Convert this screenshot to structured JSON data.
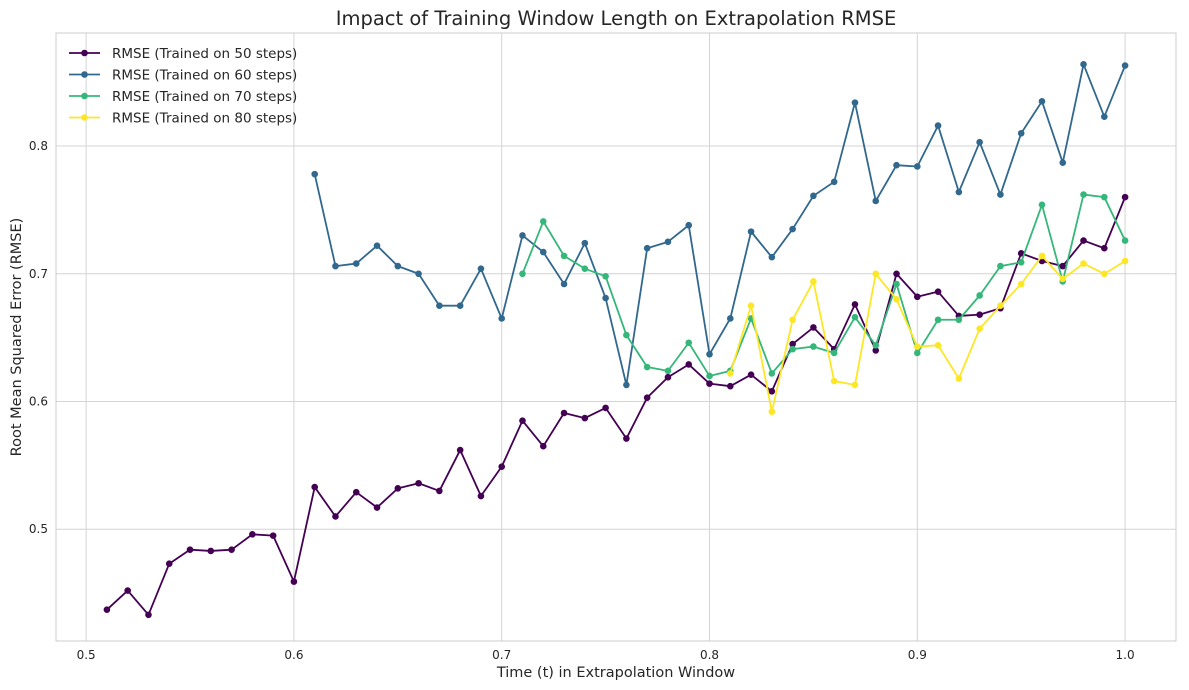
{
  "chart_data": {
    "type": "line",
    "title": "Impact of Training Window Length on Extrapolation RMSE",
    "xlabel": "Time (t) in Extrapolation Window",
    "ylabel": "Root Mean Squared Error (RMSE)",
    "xlim": [
      0.4855,
      1.0245
    ],
    "ylim": [
      0.4125,
      0.8885
    ],
    "xticks": [
      0.5,
      0.6,
      0.7,
      0.8,
      0.9,
      1.0
    ],
    "xtick_labels": [
      "0.5",
      "0.6",
      "0.7",
      "0.8",
      "0.9",
      "1.0"
    ],
    "yticks": [
      0.5,
      0.6,
      0.7,
      0.8
    ],
    "ytick_labels": [
      "0.5",
      "0.6",
      "0.7",
      "0.8"
    ],
    "grid": true,
    "legend_position": "top-left",
    "series": [
      {
        "name": "RMSE (Trained on 50 steps)",
        "color": "#440154",
        "x": [
          0.51,
          0.52,
          0.53,
          0.54,
          0.55,
          0.56,
          0.57,
          0.58,
          0.59,
          0.6,
          0.61,
          0.62,
          0.63,
          0.64,
          0.65,
          0.66,
          0.67,
          0.68,
          0.69,
          0.7,
          0.71,
          0.72,
          0.73,
          0.74,
          0.75,
          0.76,
          0.77,
          0.78,
          0.79,
          0.8,
          0.81,
          0.82,
          0.83,
          0.84,
          0.85,
          0.86,
          0.87,
          0.88,
          0.89,
          0.9,
          0.91,
          0.92,
          0.93,
          0.94,
          0.95,
          0.96,
          0.97,
          0.98,
          0.99,
          1.0
        ],
        "values": [
          0.437,
          0.452,
          0.433,
          0.473,
          0.484,
          0.483,
          0.484,
          0.496,
          0.495,
          0.459,
          0.533,
          0.51,
          0.529,
          0.517,
          0.532,
          0.536,
          0.53,
          0.562,
          0.526,
          0.549,
          0.585,
          0.565,
          0.591,
          0.587,
          0.595,
          0.571,
          0.603,
          0.619,
          0.629,
          0.614,
          0.612,
          0.621,
          0.608,
          0.645,
          0.658,
          0.641,
          0.676,
          0.64,
          0.7,
          0.682,
          0.686,
          0.667,
          0.668,
          0.673,
          0.716,
          0.71,
          0.706,
          0.726,
          0.72,
          0.76
        ]
      },
      {
        "name": "RMSE (Trained on 60 steps)",
        "color": "#31688e",
        "x": [
          0.61,
          0.62,
          0.63,
          0.64,
          0.65,
          0.66,
          0.67,
          0.68,
          0.69,
          0.7,
          0.71,
          0.72,
          0.73,
          0.74,
          0.75,
          0.76,
          0.77,
          0.78,
          0.79,
          0.8,
          0.81,
          0.82,
          0.83,
          0.84,
          0.85,
          0.86,
          0.87,
          0.88,
          0.89,
          0.9,
          0.91,
          0.92,
          0.93,
          0.94,
          0.95,
          0.96,
          0.97,
          0.98,
          0.99,
          1.0
        ],
        "values": [
          0.778,
          0.706,
          0.708,
          0.722,
          0.706,
          0.7,
          0.675,
          0.675,
          0.704,
          0.665,
          0.73,
          0.717,
          0.692,
          0.724,
          0.681,
          0.613,
          0.72,
          0.725,
          0.738,
          0.637,
          0.665,
          0.733,
          0.713,
          0.735,
          0.761,
          0.772,
          0.834,
          0.757,
          0.785,
          0.784,
          0.816,
          0.764,
          0.803,
          0.762,
          0.81,
          0.835,
          0.787,
          0.864,
          0.823,
          0.863
        ]
      },
      {
        "name": "RMSE (Trained on 70 steps)",
        "color": "#35b779",
        "x": [
          0.71,
          0.72,
          0.73,
          0.74,
          0.75,
          0.76,
          0.77,
          0.78,
          0.79,
          0.8,
          0.81,
          0.82,
          0.83,
          0.84,
          0.85,
          0.86,
          0.87,
          0.88,
          0.89,
          0.9,
          0.91,
          0.92,
          0.93,
          0.94,
          0.95,
          0.96,
          0.97,
          0.98,
          0.99,
          1.0
        ],
        "values": [
          0.7,
          0.741,
          0.714,
          0.704,
          0.698,
          0.652,
          0.627,
          0.624,
          0.646,
          0.62,
          0.624,
          0.665,
          0.622,
          0.641,
          0.643,
          0.638,
          0.666,
          0.644,
          0.692,
          0.638,
          0.664,
          0.664,
          0.683,
          0.706,
          0.709,
          0.754,
          0.694,
          0.762,
          0.76,
          0.726
        ]
      },
      {
        "name": "RMSE (Trained on 80 steps)",
        "color": "#fde725",
        "x": [
          0.81,
          0.82,
          0.83,
          0.84,
          0.85,
          0.86,
          0.87,
          0.88,
          0.89,
          0.9,
          0.91,
          0.92,
          0.93,
          0.94,
          0.95,
          0.96,
          0.97,
          0.98,
          0.99,
          1.0
        ],
        "values": [
          0.622,
          0.675,
          0.592,
          0.664,
          0.694,
          0.616,
          0.613,
          0.7,
          0.68,
          0.643,
          0.644,
          0.618,
          0.657,
          0.675,
          0.692,
          0.714,
          0.696,
          0.708,
          0.7,
          0.71
        ]
      }
    ]
  }
}
